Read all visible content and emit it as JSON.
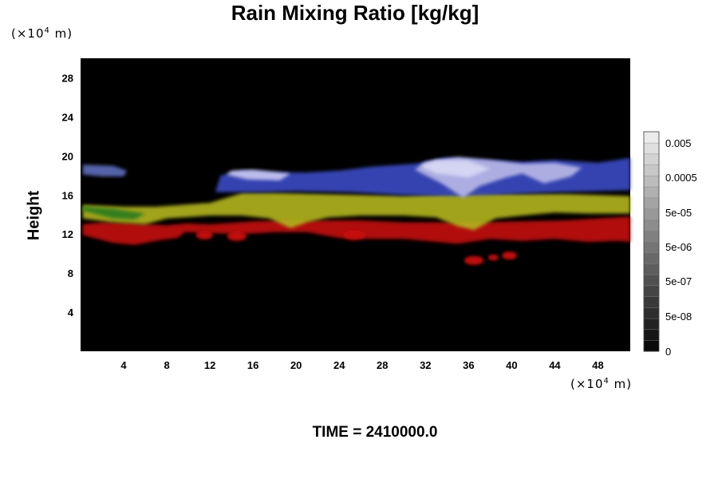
{
  "chart_data": {
    "type": "heatmap",
    "title": "Rain Mixing Ratio [kg/kg]",
    "ylabel": "Height",
    "x_unit_prefix": "(×10",
    "x_unit_exp": "4",
    "x_unit_suffix": " m)",
    "y_unit_prefix": "(×10",
    "y_unit_exp": "4",
    "y_unit_suffix": " m)",
    "xlim": [
      0,
      51
    ],
    "ylim": [
      0,
      30
    ],
    "x_ticks": [
      4,
      8,
      12,
      16,
      20,
      24,
      28,
      32,
      36,
      40,
      44,
      48
    ],
    "y_ticks": [
      4,
      8,
      12,
      16,
      20,
      24,
      28
    ],
    "colorbar": {
      "labels": [
        "0.005",
        "0.0005",
        "5e-05",
        "5e-06",
        "5e-07",
        "5e-08",
        "0"
      ],
      "levels": 20
    },
    "layers": [
      {
        "name": "red",
        "color": "#c41010",
        "points": [
          [
            0.2,
            11.9
          ],
          [
            3,
            11.1
          ],
          [
            5,
            10.9
          ],
          [
            7.5,
            11.4
          ],
          [
            9,
            11.6
          ],
          [
            9.7,
            12.2
          ],
          [
            12,
            12.1
          ],
          [
            15,
            12.0
          ],
          [
            18,
            12.2
          ],
          [
            21,
            12.2
          ],
          [
            24,
            11.6
          ],
          [
            27,
            11.5
          ],
          [
            30,
            11.5
          ],
          [
            33,
            11.2
          ],
          [
            35,
            11.0
          ],
          [
            38,
            11.5
          ],
          [
            41,
            11.3
          ],
          [
            44,
            11.5
          ],
          [
            47,
            11.2
          ],
          [
            50,
            11.3
          ],
          [
            51,
            11.2
          ],
          [
            51,
            13.8
          ],
          [
            48,
            13.6
          ],
          [
            45,
            13.4
          ],
          [
            41,
            13.3
          ],
          [
            37,
            13.2
          ],
          [
            34,
            13.2
          ],
          [
            30,
            13.2
          ],
          [
            26,
            13.4
          ],
          [
            22,
            13.4
          ],
          [
            19,
            13.4
          ],
          [
            16,
            13.3
          ],
          [
            12,
            13.0
          ],
          [
            9.8,
            13.1
          ],
          [
            8,
            12.9
          ],
          [
            5,
            13.1
          ],
          [
            2,
            13.2
          ],
          [
            0.2,
            13.0
          ]
        ]
      },
      {
        "name": "yellow",
        "color": "#b3b520",
        "points": [
          [
            0.2,
            13.6
          ],
          [
            3,
            13.2
          ],
          [
            6,
            13.0
          ],
          [
            8,
            13.6
          ],
          [
            12,
            13.9
          ],
          [
            15,
            13.9
          ],
          [
            17.5,
            13.6
          ],
          [
            19.5,
            12.6
          ],
          [
            21,
            13.2
          ],
          [
            23,
            13.7
          ],
          [
            26,
            13.9
          ],
          [
            30,
            13.9
          ],
          [
            33,
            13.7
          ],
          [
            35,
            12.8
          ],
          [
            36.5,
            12.4
          ],
          [
            38.5,
            13.6
          ],
          [
            41,
            13.9
          ],
          [
            44,
            14.2
          ],
          [
            47,
            14.1
          ],
          [
            51,
            14.1
          ],
          [
            51,
            15.9
          ],
          [
            48,
            16.0
          ],
          [
            45,
            16.1
          ],
          [
            41,
            16.1
          ],
          [
            37,
            16.2
          ],
          [
            34,
            16.1
          ],
          [
            30,
            15.9
          ],
          [
            26,
            16.0
          ],
          [
            22,
            16.1
          ],
          [
            18,
            16.2
          ],
          [
            15,
            16.2
          ],
          [
            12,
            15.2
          ],
          [
            9.5,
            15.0
          ],
          [
            7,
            14.8
          ],
          [
            4,
            14.8
          ],
          [
            0.2,
            15.0
          ]
        ]
      },
      {
        "name": "green",
        "color": "#2a7a1e",
        "points": [
          [
            0.2,
            14.4
          ],
          [
            3,
            13.6
          ],
          [
            5,
            13.5
          ],
          [
            6,
            14.1
          ],
          [
            3,
            14.6
          ],
          [
            0.2,
            14.8
          ]
        ]
      },
      {
        "name": "blue",
        "color": "#3a4bc4",
        "points": [
          [
            12.5,
            16.3
          ],
          [
            16,
            16.3
          ],
          [
            20,
            16.4
          ],
          [
            25,
            16.3
          ],
          [
            30,
            16.0
          ],
          [
            35,
            15.9
          ],
          [
            40,
            16.1
          ],
          [
            44,
            16.3
          ],
          [
            48,
            16.4
          ],
          [
            51,
            16.5
          ],
          [
            51,
            19.8
          ],
          [
            48,
            19.3
          ],
          [
            44,
            19.6
          ],
          [
            41,
            19.4
          ],
          [
            37,
            19.6
          ],
          [
            34,
            19.8
          ],
          [
            31,
            19.2
          ],
          [
            27,
            18.9
          ],
          [
            24,
            18.5
          ],
          [
            21,
            18.3
          ],
          [
            18,
            18.3
          ],
          [
            15,
            18.5
          ],
          [
            13,
            18.0
          ]
        ]
      },
      {
        "name": "blue-left",
        "color": "#5e6dbd",
        "points": [
          [
            0.2,
            18.1
          ],
          [
            2,
            17.9
          ],
          [
            4,
            17.9
          ],
          [
            4.3,
            18.5
          ],
          [
            3,
            19.0
          ],
          [
            0.2,
            19.1
          ]
        ]
      },
      {
        "name": "white",
        "color": "#b9b9e8",
        "points": [
          [
            31,
            18.6
          ],
          [
            33.5,
            17.2
          ],
          [
            35.5,
            15.7
          ],
          [
            37,
            16.9
          ],
          [
            39.5,
            17.8
          ],
          [
            41,
            18.2
          ],
          [
            43,
            17.2
          ],
          [
            45.5,
            17.9
          ],
          [
            46.5,
            18.8
          ],
          [
            44,
            19.3
          ],
          [
            41,
            19.2
          ],
          [
            38,
            19.6
          ],
          [
            35,
            19.9
          ],
          [
            32,
            19.4
          ]
        ]
      },
      {
        "name": "white-2",
        "color": "#c9c9ef",
        "points": [
          [
            13.5,
            18.1
          ],
          [
            15.5,
            17.6
          ],
          [
            18.5,
            17.5
          ],
          [
            19.5,
            18.2
          ],
          [
            16,
            18.6
          ],
          [
            14,
            18.5
          ]
        ]
      },
      {
        "name": "white-3",
        "color": "#d8d8f5",
        "points": [
          [
            31.5,
            19.0
          ],
          [
            33,
            18.2
          ],
          [
            36,
            17.8
          ],
          [
            38,
            18.7
          ],
          [
            36,
            19.5
          ],
          [
            33,
            19.6
          ]
        ]
      }
    ],
    "blobs": [
      {
        "x": 36.5,
        "y": 9.3,
        "rx": 0.9,
        "ry": 0.45,
        "color": "#c41010"
      },
      {
        "x": 38.3,
        "y": 9.6,
        "rx": 0.5,
        "ry": 0.3,
        "color": "#c41010"
      },
      {
        "x": 39.8,
        "y": 9.8,
        "rx": 0.7,
        "ry": 0.4,
        "color": "#c41010"
      },
      {
        "x": 11.5,
        "y": 11.9,
        "rx": 0.8,
        "ry": 0.45,
        "color": "#c41010"
      },
      {
        "x": 14.5,
        "y": 11.8,
        "rx": 0.9,
        "ry": 0.5,
        "color": "#c41010"
      },
      {
        "x": 25.4,
        "y": 11.9,
        "rx": 1.0,
        "ry": 0.5,
        "color": "#c41010"
      }
    ]
  },
  "time_label": "TIME = 2410000.0"
}
